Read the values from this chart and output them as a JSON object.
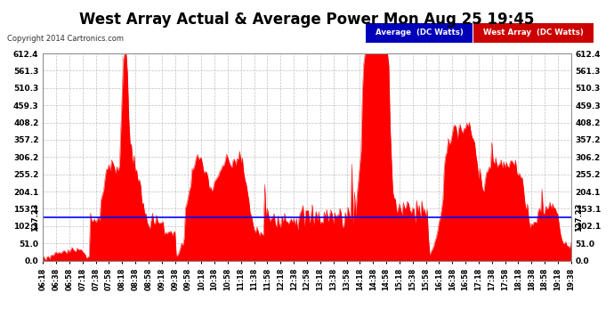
{
  "title": "West Array Actual & Average Power Mon Aug 25 19:45",
  "copyright": "Copyright 2014 Cartronics.com",
  "ytick_values": [
    0.0,
    51.0,
    102.1,
    153.1,
    204.1,
    255.2,
    306.2,
    357.2,
    408.2,
    459.3,
    510.3,
    561.3,
    612.4
  ],
  "average_line_value": 127.23,
  "average_label": "127.23",
  "bg_color": "#ffffff",
  "plot_bg_color": "#ffffff",
  "grid_color": "#b0b0b0",
  "fill_color": "#ff0000",
  "line_color": "#ff0000",
  "avg_line_color": "#0000ff",
  "title_fontsize": 12,
  "legend_avg_color": "#0000bb",
  "legend_west_color": "#cc0000",
  "ymax": 612.4
}
